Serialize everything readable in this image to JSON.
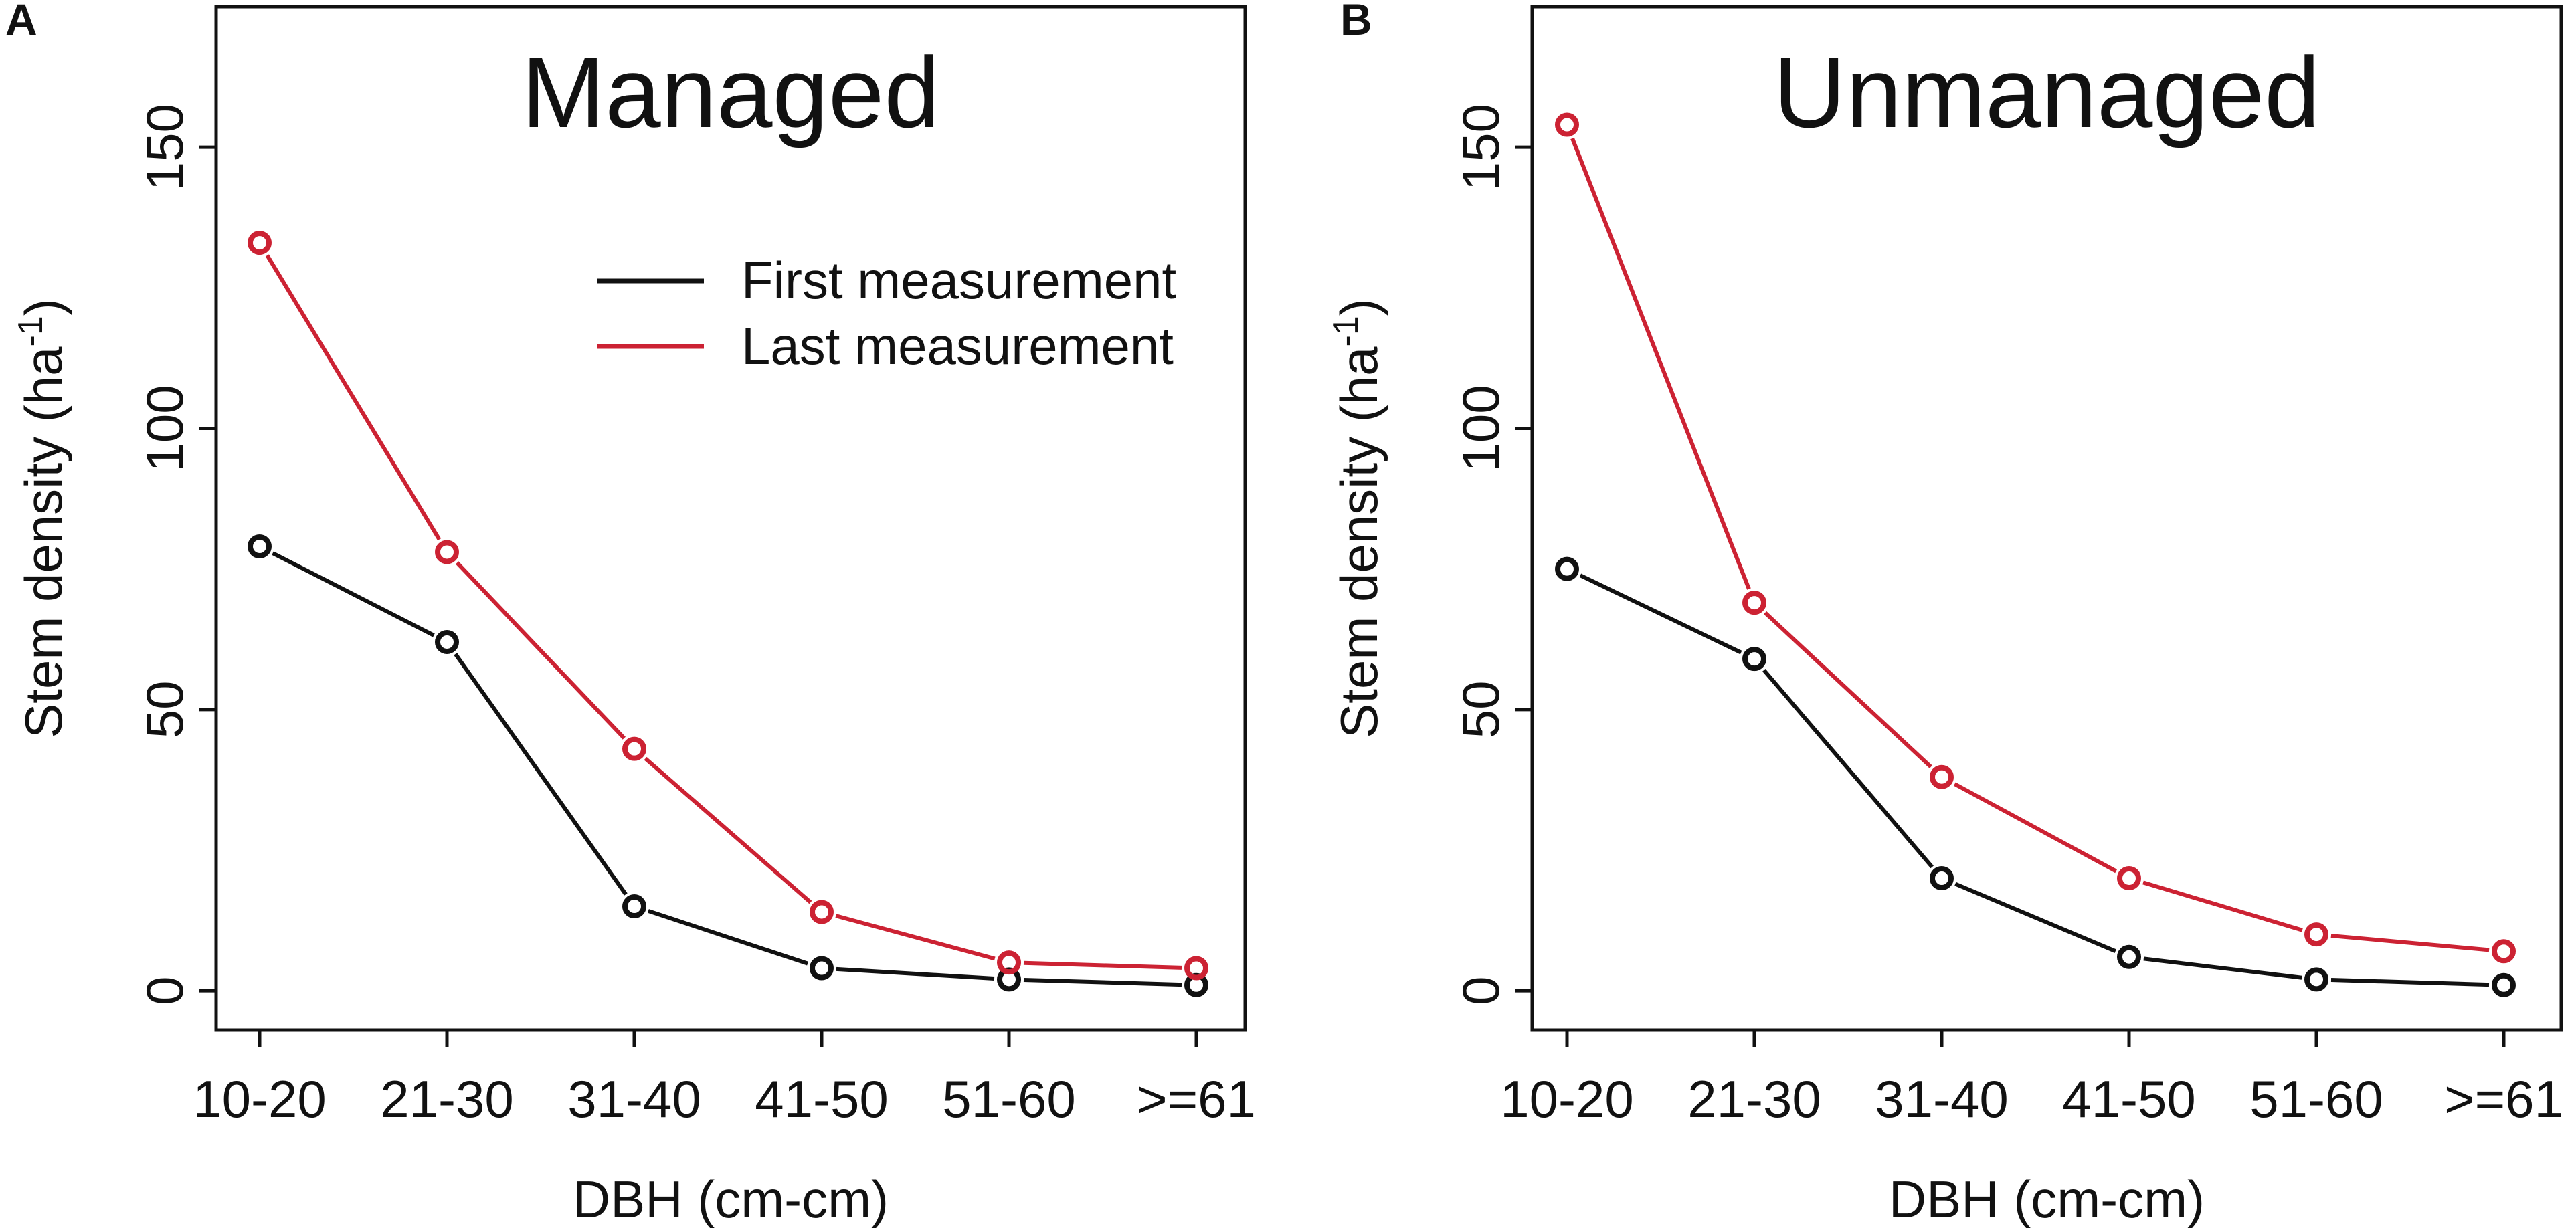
{
  "figure": {
    "panels": [
      {
        "letter": "A"
      },
      {
        "letter": "B"
      }
    ]
  },
  "chart_data": [
    {
      "type": "line",
      "title": "Managed",
      "xlabel": "DBH (cm-cm)",
      "ylabel": "Stem density (ha",
      "ylabel_superscript": "-1",
      "ylabel_close": ")",
      "categories": [
        "10-20",
        "21-30",
        "31-40",
        "41-50",
        "51-60",
        ">=61"
      ],
      "ylim": [
        -7,
        175
      ],
      "yticks": [
        0,
        50,
        100,
        150
      ],
      "legend": {
        "placement": "top-right"
      },
      "series": [
        {
          "name": "First measurement",
          "color": "#111111",
          "values": [
            79,
            62,
            15,
            4,
            2,
            1
          ]
        },
        {
          "name": "Last measurement",
          "color": "#cc2233",
          "values": [
            133,
            78,
            43,
            14,
            5,
            4
          ]
        }
      ]
    },
    {
      "type": "line",
      "title": "Unmanaged",
      "xlabel": "DBH (cm-cm)",
      "ylabel": "Stem density (ha",
      "ylabel_superscript": "-1",
      "ylabel_close": ")",
      "categories": [
        "10-20",
        "21-30",
        "31-40",
        "41-50",
        "51-60",
        ">=61"
      ],
      "ylim": [
        -7,
        175
      ],
      "yticks": [
        0,
        50,
        100,
        150
      ],
      "legend": null,
      "series": [
        {
          "name": "First measurement",
          "color": "#111111",
          "values": [
            75,
            59,
            20,
            6,
            2,
            1
          ]
        },
        {
          "name": "Last measurement",
          "color": "#cc2233",
          "values": [
            154,
            69,
            38,
            20,
            10,
            7
          ]
        }
      ]
    }
  ]
}
